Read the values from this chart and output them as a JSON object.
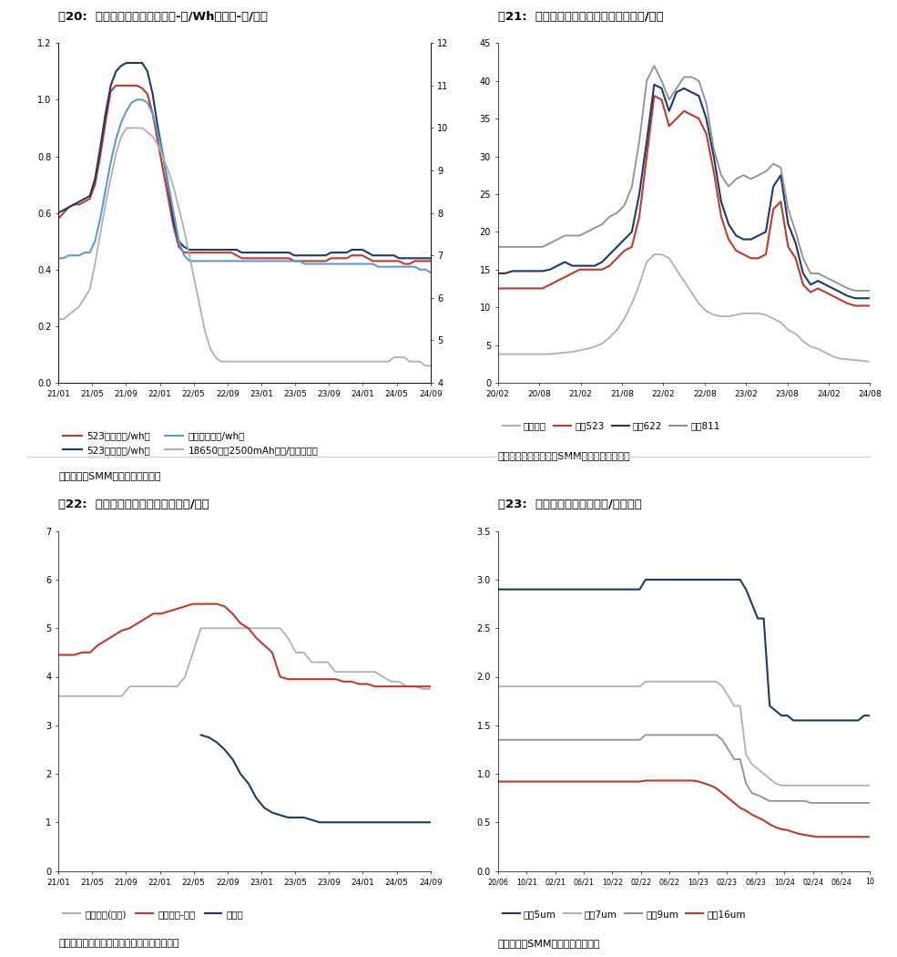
{
  "fig20": {
    "title": "图20:  部分电芯价格走势（左轴-元/Wh、右轴-元/支）",
    "xticks": [
      "21/01",
      "21/05",
      "21/09",
      "22/01",
      "22/05",
      "22/09",
      "23/01",
      "23/05",
      "23/09",
      "24/01",
      "24/05",
      "24/09"
    ],
    "ylim_left": [
      0.0,
      1.2
    ],
    "ylim_right": [
      4,
      12
    ],
    "yticks_left": [
      0.0,
      0.2,
      0.4,
      0.6,
      0.8,
      1.0,
      1.2
    ],
    "yticks_right": [
      4,
      5,
      6,
      7,
      8,
      9,
      10,
      11,
      12
    ],
    "series_523fang": [
      0.58,
      0.6,
      0.62,
      0.63,
      0.63,
      0.64,
      0.65,
      0.7,
      0.8,
      0.92,
      1.03,
      1.05,
      1.05,
      1.05,
      1.05,
      1.05,
      1.04,
      1.02,
      0.95,
      0.85,
      0.75,
      0.65,
      0.55,
      0.48,
      0.46,
      0.46,
      0.46,
      0.46,
      0.46,
      0.46,
      0.46,
      0.46,
      0.46,
      0.46,
      0.45,
      0.44,
      0.44,
      0.44,
      0.44,
      0.44,
      0.44,
      0.44,
      0.44,
      0.44,
      0.44,
      0.43,
      0.43,
      0.43,
      0.43,
      0.43,
      0.43,
      0.43,
      0.44,
      0.44,
      0.44,
      0.44,
      0.45,
      0.45,
      0.45,
      0.44,
      0.43,
      0.43,
      0.43,
      0.43,
      0.43,
      0.43,
      0.42,
      0.42,
      0.43,
      0.43,
      0.43,
      0.43
    ],
    "series_523ruan": [
      0.6,
      0.61,
      0.62,
      0.63,
      0.64,
      0.65,
      0.66,
      0.72,
      0.83,
      0.95,
      1.05,
      1.1,
      1.12,
      1.13,
      1.13,
      1.13,
      1.13,
      1.1,
      1.02,
      0.9,
      0.8,
      0.69,
      0.57,
      0.5,
      0.48,
      0.47,
      0.47,
      0.47,
      0.47,
      0.47,
      0.47,
      0.47,
      0.47,
      0.47,
      0.47,
      0.46,
      0.46,
      0.46,
      0.46,
      0.46,
      0.46,
      0.46,
      0.46,
      0.46,
      0.46,
      0.45,
      0.45,
      0.45,
      0.45,
      0.45,
      0.45,
      0.45,
      0.46,
      0.46,
      0.46,
      0.46,
      0.47,
      0.47,
      0.47,
      0.46,
      0.45,
      0.45,
      0.45,
      0.45,
      0.45,
      0.44,
      0.44,
      0.44,
      0.44,
      0.44,
      0.44,
      0.44
    ],
    "series_fangfeili": [
      0.44,
      0.44,
      0.45,
      0.45,
      0.45,
      0.46,
      0.46,
      0.5,
      0.58,
      0.68,
      0.78,
      0.86,
      0.92,
      0.96,
      0.99,
      1.0,
      1.0,
      0.99,
      0.95,
      0.88,
      0.8,
      0.7,
      0.6,
      0.5,
      0.45,
      0.43,
      0.43,
      0.43,
      0.43,
      0.43,
      0.43,
      0.43,
      0.43,
      0.43,
      0.43,
      0.43,
      0.43,
      0.43,
      0.43,
      0.43,
      0.43,
      0.43,
      0.43,
      0.43,
      0.43,
      0.43,
      0.43,
      0.42,
      0.42,
      0.42,
      0.42,
      0.42,
      0.42,
      0.42,
      0.42,
      0.42,
      0.42,
      0.42,
      0.42,
      0.42,
      0.42,
      0.41,
      0.41,
      0.41,
      0.41,
      0.41,
      0.41,
      0.41,
      0.41,
      0.4,
      0.4,
      0.39
    ],
    "series_18650": [
      5.5,
      5.5,
      5.6,
      5.7,
      5.8,
      6.0,
      6.2,
      6.8,
      7.5,
      8.2,
      8.8,
      9.4,
      9.8,
      10.0,
      10.0,
      10.0,
      10.0,
      9.9,
      9.8,
      9.6,
      9.3,
      9.0,
      8.6,
      8.1,
      7.6,
      7.0,
      6.4,
      5.8,
      5.2,
      4.8,
      4.6,
      4.5,
      4.5,
      4.5,
      4.5,
      4.5,
      4.5,
      4.5,
      4.5,
      4.5,
      4.5,
      4.5,
      4.5,
      4.5,
      4.5,
      4.5,
      4.5,
      4.5,
      4.5,
      4.5,
      4.5,
      4.5,
      4.5,
      4.5,
      4.5,
      4.5,
      4.5,
      4.5,
      4.5,
      4.5,
      4.5,
      4.5,
      4.5,
      4.5,
      4.6,
      4.6,
      4.6,
      4.5,
      4.5,
      4.5,
      4.4,
      4.4
    ],
    "colors": [
      "#c0392b",
      "#1a3a6b",
      "#5b9bd5",
      "#b0b0b0"
    ],
    "legend": [
      [
        "523方形（元/wh）",
        "#c0392b"
      ],
      [
        "523软包（元/wh）",
        "#1a3a6b"
      ],
      [
        "方形铁锂（元/wh）",
        "#5b9bd5"
      ],
      [
        "18650圆柱2500mAh（元/支，右轴）",
        "#b0b0b0"
      ]
    ],
    "source": "数据来源：SMM，东吴证券研究所"
  },
  "fig21": {
    "title": "图21:  部分电池正极材料价格走势（万元/吨）",
    "xticks": [
      "20/02",
      "20/08",
      "21/02",
      "21/08",
      "22/02",
      "22/08",
      "23/02",
      "23/08",
      "24/02",
      "24/08"
    ],
    "ylim": [
      0,
      45
    ],
    "yticks": [
      0,
      5,
      10,
      15,
      20,
      25,
      30,
      35,
      40,
      45
    ],
    "series_lifepo4": [
      3.8,
      3.8,
      3.8,
      3.8,
      3.8,
      3.8,
      3.8,
      3.8,
      3.9,
      4.0,
      4.1,
      4.3,
      4.5,
      4.8,
      5.2,
      6.0,
      7.0,
      8.5,
      10.5,
      13.0,
      16.0,
      17.0,
      17.0,
      16.5,
      15.0,
      13.5,
      12.0,
      10.5,
      9.5,
      9.0,
      8.8,
      8.8,
      9.0,
      9.2,
      9.2,
      9.2,
      9.0,
      8.5,
      8.0,
      7.0,
      6.5,
      5.5,
      4.8,
      4.5,
      4.0,
      3.5,
      3.2,
      3.1,
      3.0,
      2.9,
      2.8
    ],
    "series_523": [
      12.5,
      12.5,
      12.5,
      12.5,
      12.5,
      12.5,
      12.5,
      13.0,
      13.5,
      14.0,
      14.5,
      15.0,
      15.0,
      15.0,
      15.0,
      15.5,
      16.5,
      17.5,
      18.0,
      22.0,
      30.0,
      38.0,
      37.5,
      34.0,
      35.0,
      36.0,
      35.5,
      35.0,
      33.0,
      28.0,
      22.0,
      19.0,
      17.5,
      17.0,
      16.5,
      16.5,
      17.0,
      23.0,
      24.0,
      18.0,
      16.5,
      13.0,
      12.0,
      12.5,
      12.0,
      11.5,
      11.0,
      10.5,
      10.2,
      10.2,
      10.2
    ],
    "series_622": [
      14.5,
      14.5,
      14.8,
      14.8,
      14.8,
      14.8,
      14.8,
      15.0,
      15.5,
      16.0,
      15.5,
      15.5,
      15.5,
      15.5,
      16.0,
      17.0,
      18.0,
      19.0,
      20.0,
      25.0,
      32.0,
      39.5,
      39.0,
      36.0,
      38.5,
      39.0,
      38.5,
      38.0,
      35.0,
      30.0,
      24.0,
      21.0,
      19.5,
      19.0,
      19.0,
      19.5,
      20.0,
      26.0,
      27.5,
      21.0,
      18.5,
      14.5,
      13.0,
      13.5,
      13.0,
      12.5,
      12.0,
      11.5,
      11.2,
      11.2,
      11.2
    ],
    "series_811": [
      18.0,
      18.0,
      18.0,
      18.0,
      18.0,
      18.0,
      18.0,
      18.5,
      19.0,
      19.5,
      19.5,
      19.5,
      20.0,
      20.5,
      21.0,
      22.0,
      22.5,
      23.5,
      26.0,
      32.0,
      40.0,
      42.0,
      40.0,
      37.5,
      39.0,
      40.5,
      40.5,
      40.0,
      37.0,
      31.0,
      27.5,
      26.0,
      27.0,
      27.5,
      27.0,
      27.5,
      28.0,
      29.0,
      28.5,
      23.0,
      20.0,
      16.5,
      14.5,
      14.5,
      14.0,
      13.5,
      13.0,
      12.5,
      12.2,
      12.2,
      12.2
    ],
    "colors": [
      "#b0b0b0",
      "#c0392b",
      "#1a3a6b",
      "#909090"
    ],
    "legend": [
      [
        "磷酸铁锂",
        "#b0b0b0"
      ],
      [
        "三元523",
        "#c0392b"
      ],
      [
        "三元622",
        "#1a3a6b"
      ],
      [
        "三元811",
        "#909090"
      ]
    ],
    "source": "数据来源：鑫椤资讯、SMM，东吴证券研究所"
  },
  "fig22": {
    "title": "图22:  电池负极材料价格走势（万元/吨）",
    "xticks": [
      "21/01",
      "21/05",
      "21/09",
      "22/01",
      "22/05",
      "22/09",
      "23/01",
      "23/05",
      "23/09",
      "24/01",
      "24/05",
      "24/09"
    ],
    "ylim": [
      0,
      7
    ],
    "yticks": [
      0,
      1,
      2,
      3,
      4,
      5,
      6,
      7
    ],
    "series_nat": [
      3.6,
      3.6,
      3.6,
      3.6,
      3.6,
      3.6,
      3.6,
      3.6,
      3.6,
      3.8,
      3.8,
      3.8,
      3.8,
      3.8,
      3.8,
      3.8,
      4.0,
      4.5,
      5.0,
      5.0,
      5.0,
      5.0,
      5.0,
      5.0,
      5.0,
      5.0,
      5.0,
      5.0,
      5.0,
      4.8,
      4.5,
      4.5,
      4.3,
      4.3,
      4.3,
      4.1,
      4.1,
      4.1,
      4.1,
      4.1,
      4.1,
      4.0,
      3.9,
      3.9,
      3.8,
      3.8,
      3.75,
      3.75
    ],
    "series_art": [
      4.45,
      4.45,
      4.45,
      4.5,
      4.5,
      4.65,
      4.75,
      4.85,
      4.95,
      5.0,
      5.1,
      5.2,
      5.3,
      5.3,
      5.35,
      5.4,
      5.45,
      5.5,
      5.5,
      5.5,
      5.5,
      5.45,
      5.3,
      5.1,
      5.0,
      4.8,
      4.65,
      4.5,
      4.0,
      3.95,
      3.95,
      3.95,
      3.95,
      3.95,
      3.95,
      3.95,
      3.9,
      3.9,
      3.85,
      3.85,
      3.8,
      3.8,
      3.8,
      3.8,
      3.8,
      3.8,
      3.8,
      3.8
    ],
    "series_gra": [
      null,
      null,
      null,
      null,
      null,
      null,
      null,
      null,
      null,
      null,
      null,
      null,
      null,
      null,
      null,
      null,
      null,
      null,
      2.8,
      2.75,
      2.65,
      2.5,
      2.3,
      2.0,
      1.8,
      1.5,
      1.3,
      1.2,
      1.15,
      1.1,
      1.1,
      1.1,
      1.05,
      1.0,
      1.0,
      1.0,
      1.0,
      1.0,
      1.0,
      1.0,
      1.0,
      1.0,
      1.0,
      1.0,
      1.0,
      1.0,
      1.0,
      1.0
    ],
    "colors": [
      "#b0b0b0",
      "#c0392b",
      "#1a3a6b"
    ],
    "legend": [
      [
        "天然石墨(中端)",
        "#b0b0b0"
      ],
      [
        "人造负极-百川",
        "#c0392b"
      ],
      [
        "石墨化",
        "#1a3a6b"
      ]
    ],
    "source": "数据来源：鑫椤资讯、百川，东吴证券研究所"
  },
  "fig23": {
    "title": "图23:  部分隔膜价格走势（元/平方米）",
    "xticks": [
      "20/06",
      "10/21",
      "02/21",
      "06/21",
      "10/22",
      "02/22",
      "06/22",
      "10/23",
      "02/23",
      "06/23",
      "10/24",
      "02/24",
      "06/24",
      "10"
    ],
    "ylim": [
      0,
      3.5
    ],
    "yticks": [
      0,
      0.5,
      1.0,
      1.5,
      2.0,
      2.5,
      3.0,
      3.5
    ],
    "series_5um": [
      2.9,
      2.9,
      2.9,
      2.9,
      2.9,
      2.9,
      2.9,
      2.9,
      2.9,
      2.9,
      2.9,
      2.9,
      2.9,
      2.9,
      2.9,
      2.9,
      2.9,
      2.9,
      2.9,
      2.9,
      2.9,
      2.9,
      2.9,
      2.9,
      2.9,
      3.0,
      3.0,
      3.0,
      3.0,
      3.0,
      3.0,
      3.0,
      3.0,
      3.0,
      3.0,
      3.0,
      3.0,
      3.0,
      3.0,
      3.0,
      3.0,
      3.0,
      2.9,
      2.75,
      2.6,
      2.6,
      1.7,
      1.65,
      1.6,
      1.6,
      1.55,
      1.55,
      1.55,
      1.55,
      1.55,
      1.55,
      1.55,
      1.55,
      1.55,
      1.55,
      1.55,
      1.55,
      1.6,
      1.6
    ],
    "series_7um": [
      1.9,
      1.9,
      1.9,
      1.9,
      1.9,
      1.9,
      1.9,
      1.9,
      1.9,
      1.9,
      1.9,
      1.9,
      1.9,
      1.9,
      1.9,
      1.9,
      1.9,
      1.9,
      1.9,
      1.9,
      1.9,
      1.9,
      1.9,
      1.9,
      1.9,
      1.95,
      1.95,
      1.95,
      1.95,
      1.95,
      1.95,
      1.95,
      1.95,
      1.95,
      1.95,
      1.95,
      1.95,
      1.95,
      1.9,
      1.8,
      1.7,
      1.7,
      1.2,
      1.1,
      1.05,
      1.0,
      0.95,
      0.9,
      0.88,
      0.88,
      0.88,
      0.88,
      0.88,
      0.88,
      0.88,
      0.88,
      0.88,
      0.88,
      0.88,
      0.88,
      0.88,
      0.88,
      0.88,
      0.88
    ],
    "series_9um": [
      1.35,
      1.35,
      1.35,
      1.35,
      1.35,
      1.35,
      1.35,
      1.35,
      1.35,
      1.35,
      1.35,
      1.35,
      1.35,
      1.35,
      1.35,
      1.35,
      1.35,
      1.35,
      1.35,
      1.35,
      1.35,
      1.35,
      1.35,
      1.35,
      1.35,
      1.4,
      1.4,
      1.4,
      1.4,
      1.4,
      1.4,
      1.4,
      1.4,
      1.4,
      1.4,
      1.4,
      1.4,
      1.4,
      1.35,
      1.25,
      1.15,
      1.15,
      0.9,
      0.8,
      0.78,
      0.75,
      0.72,
      0.72,
      0.72,
      0.72,
      0.72,
      0.72,
      0.72,
      0.7,
      0.7,
      0.7,
      0.7,
      0.7,
      0.7,
      0.7,
      0.7,
      0.7,
      0.7,
      0.7
    ],
    "series_16um": [
      0.92,
      0.92,
      0.92,
      0.92,
      0.92,
      0.92,
      0.92,
      0.92,
      0.92,
      0.92,
      0.92,
      0.92,
      0.92,
      0.92,
      0.92,
      0.92,
      0.92,
      0.92,
      0.92,
      0.92,
      0.92,
      0.92,
      0.92,
      0.92,
      0.92,
      0.93,
      0.93,
      0.93,
      0.93,
      0.93,
      0.93,
      0.93,
      0.93,
      0.93,
      0.92,
      0.9,
      0.88,
      0.85,
      0.8,
      0.75,
      0.7,
      0.65,
      0.62,
      0.58,
      0.55,
      0.52,
      0.48,
      0.45,
      0.43,
      0.42,
      0.4,
      0.38,
      0.37,
      0.36,
      0.35,
      0.35,
      0.35,
      0.35,
      0.35,
      0.35,
      0.35,
      0.35,
      0.35,
      0.35
    ],
    "colors": [
      "#1a3a6b",
      "#b0b0b0",
      "#909090",
      "#c0392b"
    ],
    "legend": [
      [
        "湿法5um",
        "#1a3a6b"
      ],
      [
        "湿法7um",
        "#b0b0b0"
      ],
      [
        "湿法9um",
        "#909090"
      ],
      [
        "干法16um",
        "#c0392b"
      ]
    ],
    "source": "数据来源：SMM，东吴证券研究所"
  },
  "layout": {
    "title_fontsize": 9.5,
    "tick_fontsize": 7,
    "legend_fontsize": 7.5,
    "source_fontsize": 8,
    "line_color_top": "#888888",
    "line_color_sep": "#cccccc",
    "bg_color": "#ffffff"
  }
}
